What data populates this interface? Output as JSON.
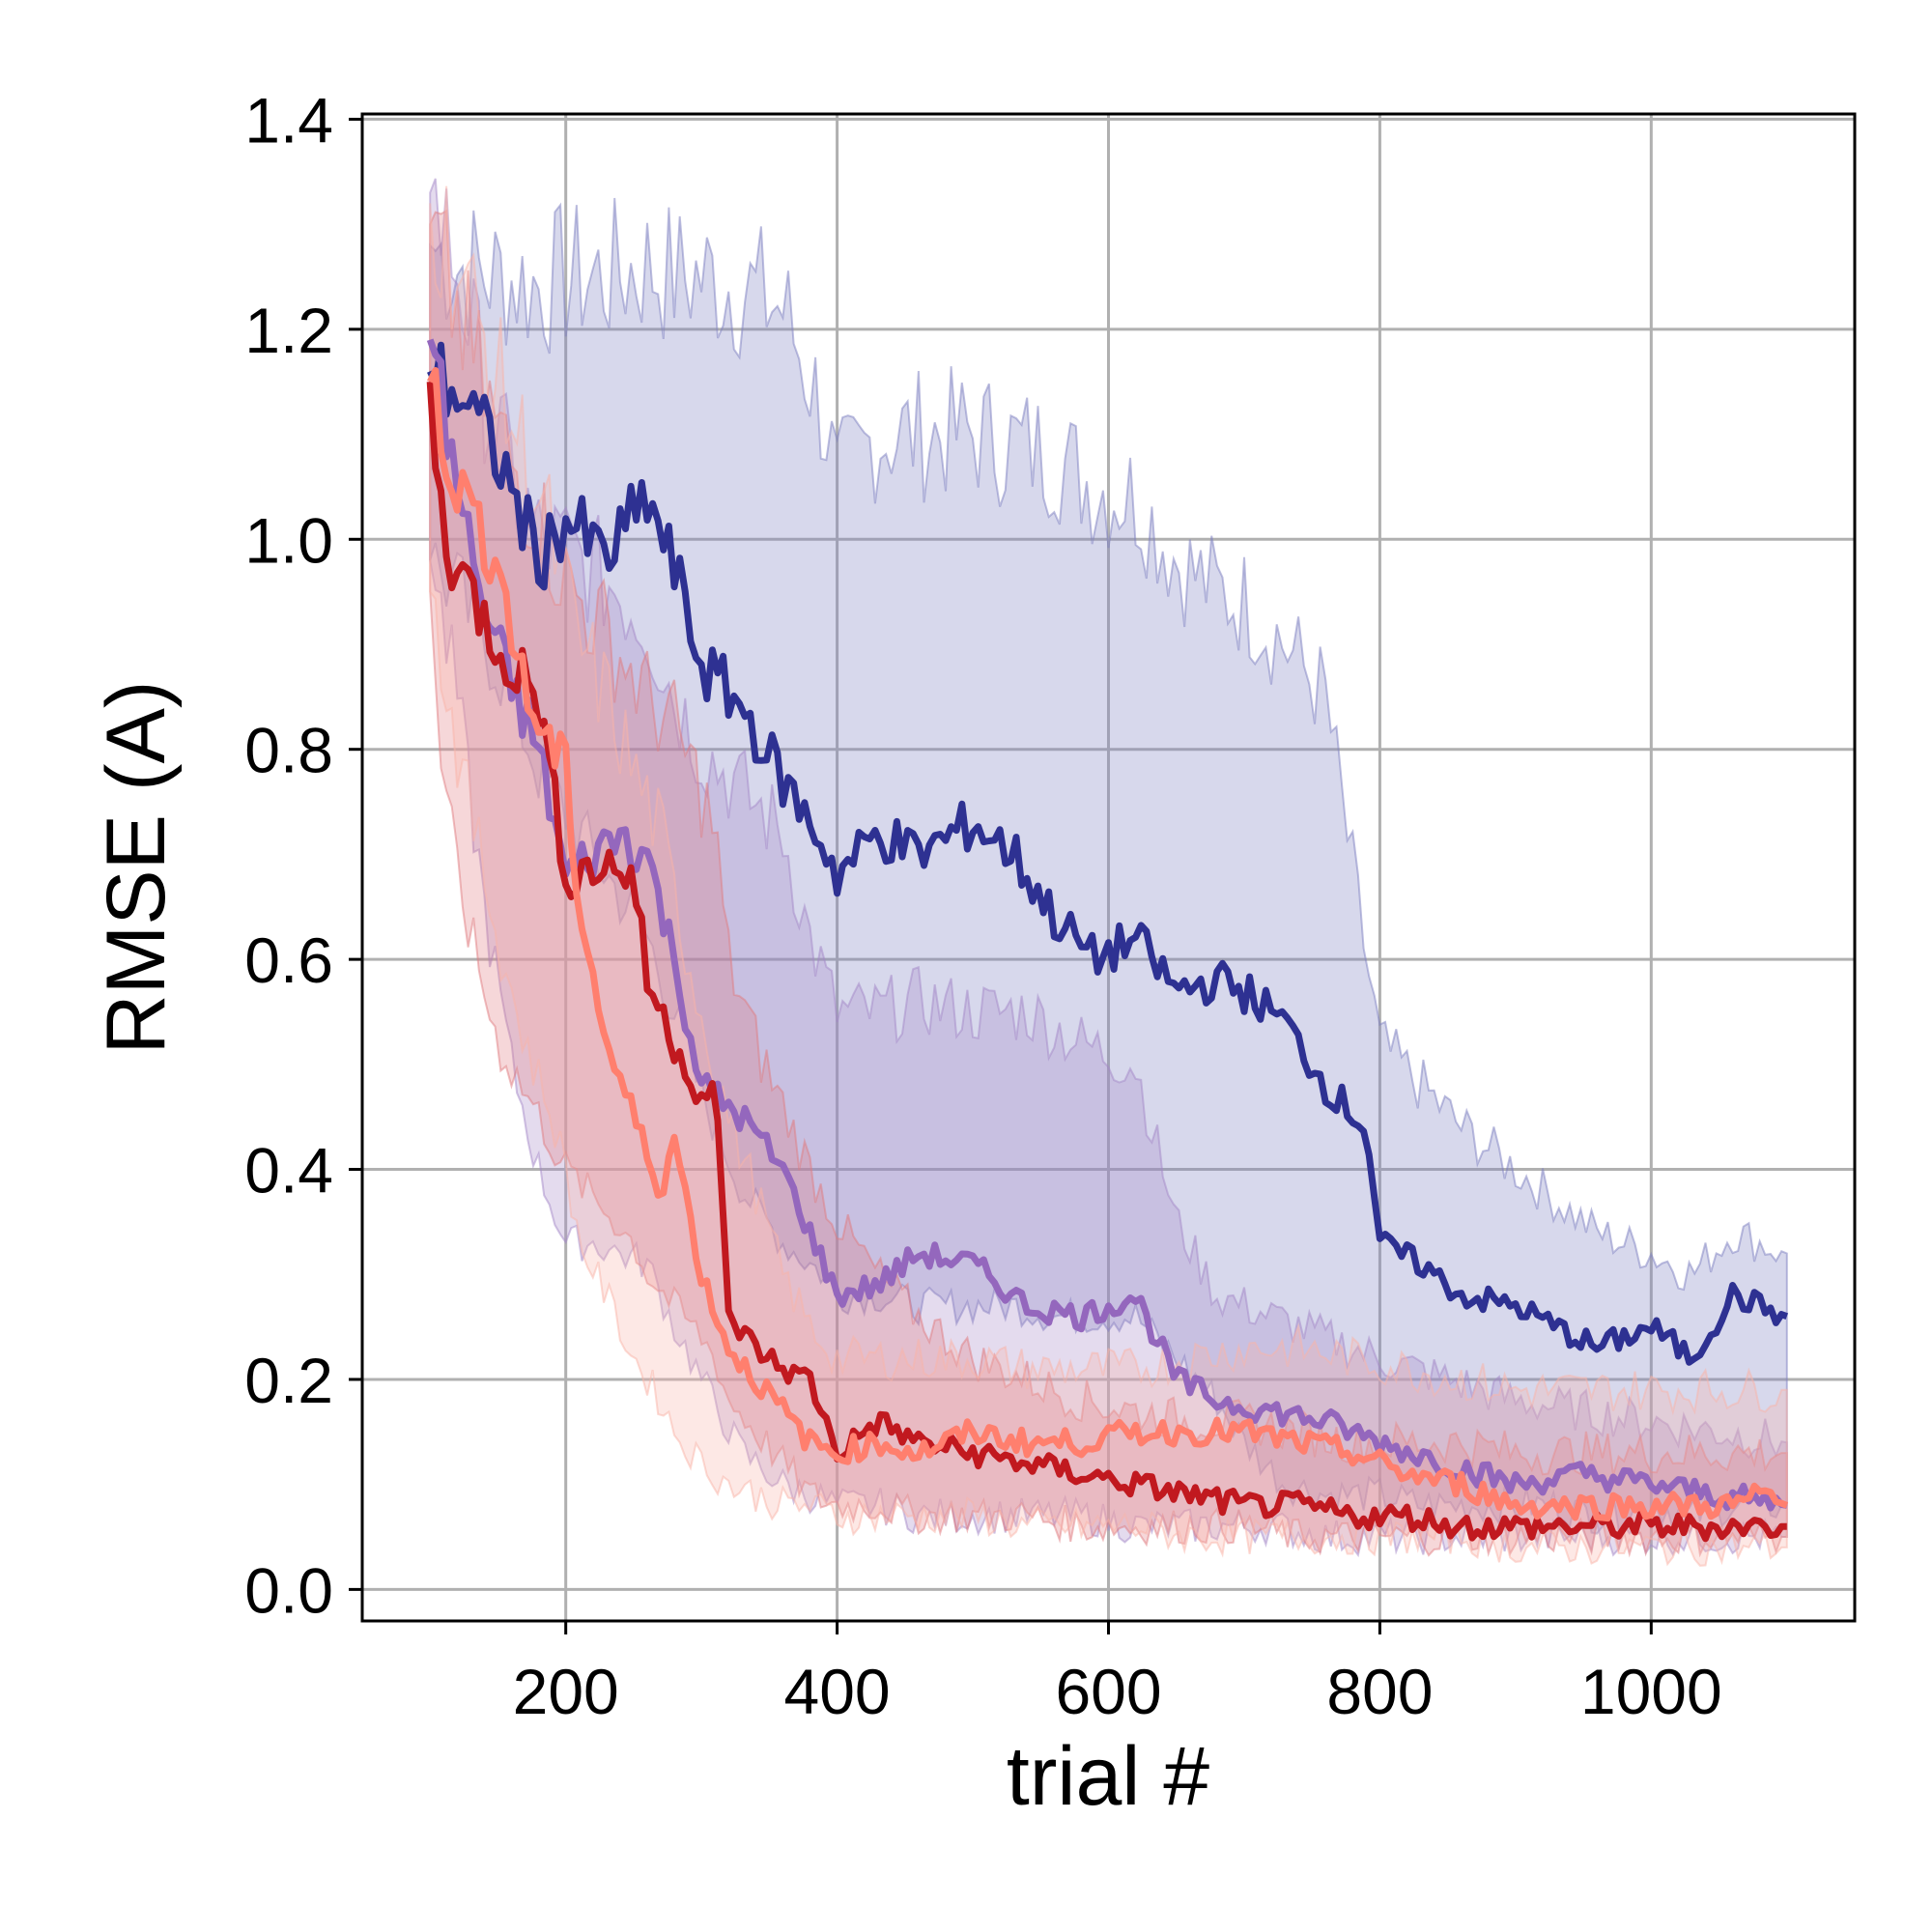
{
  "chart_data": {
    "type": "line",
    "title": "",
    "xlabel": "trial #",
    "ylabel": "RMSE (A)",
    "xlim": [
      50,
      1150
    ],
    "ylim": [
      -0.03,
      1.405
    ],
    "xticks": [
      200,
      400,
      600,
      800,
      1000
    ],
    "xtick_labels": [
      "200",
      "400",
      "600",
      "800",
      "1000"
    ],
    "yticks": [
      0.0,
      0.2,
      0.4,
      0.6,
      0.8,
      1.0,
      1.2,
      1.4
    ],
    "ytick_labels": [
      "0.0",
      "0.2",
      "0.4",
      "0.6",
      "0.8",
      "1.0",
      "1.2",
      "1.4"
    ],
    "grid": true,
    "legend": "none",
    "series": [
      {
        "color": "#2e3192",
        "band_color": "#7b7ec0",
        "x": [
          100,
          120,
          150,
          180,
          200,
          230,
          260,
          280,
          300,
          330,
          360,
          390,
          400,
          430,
          460,
          500,
          530,
          560,
          590,
          620,
          650,
          680,
          700,
          730,
          760,
          790,
          800,
          830,
          860,
          900,
          930,
          960,
          1000,
          1030,
          1060,
          1100
        ],
        "values": [
          1.16,
          1.14,
          1.08,
          0.98,
          1.02,
          0.98,
          1.04,
          0.97,
          0.88,
          0.84,
          0.77,
          0.71,
          0.68,
          0.72,
          0.7,
          0.73,
          0.7,
          0.64,
          0.6,
          0.62,
          0.57,
          0.58,
          0.57,
          0.54,
          0.48,
          0.44,
          0.33,
          0.31,
          0.28,
          0.27,
          0.25,
          0.23,
          0.25,
          0.22,
          0.28,
          0.26
        ],
        "lower": [
          0.98,
          0.95,
          0.88,
          0.78,
          0.74,
          0.68,
          0.62,
          0.55,
          0.47,
          0.38,
          0.33,
          0.3,
          0.28,
          0.28,
          0.27,
          0.27,
          0.27,
          0.26,
          0.26,
          0.26,
          0.22,
          0.18,
          0.14,
          0.1,
          0.09,
          0.09,
          0.09,
          0.08,
          0.08,
          0.08,
          0.08,
          0.07,
          0.08,
          0.07,
          0.08,
          0.08
        ],
        "upper": [
          1.28,
          1.26,
          1.25,
          1.24,
          1.25,
          1.25,
          1.26,
          1.25,
          1.25,
          1.24,
          1.22,
          1.12,
          1.05,
          1.1,
          1.1,
          1.1,
          1.09,
          1.08,
          1.05,
          1.04,
          0.98,
          0.95,
          0.94,
          0.9,
          0.85,
          0.6,
          0.52,
          0.48,
          0.44,
          0.4,
          0.37,
          0.34,
          0.32,
          0.3,
          0.34,
          0.32
        ]
      },
      {
        "color": "#9467bd",
        "band_color": "#a487c8",
        "x": [
          100,
          120,
          140,
          160,
          180,
          200,
          220,
          240,
          260,
          280,
          300,
          330,
          360,
          380,
          400,
          430,
          460,
          500,
          540,
          580,
          620,
          650,
          680,
          720,
          760,
          800,
          850,
          900,
          950,
          1000,
          1050,
          1100
        ],
        "values": [
          1.19,
          1.05,
          0.93,
          0.86,
          0.8,
          0.68,
          0.7,
          0.72,
          0.7,
          0.6,
          0.48,
          0.45,
          0.4,
          0.34,
          0.28,
          0.29,
          0.32,
          0.31,
          0.27,
          0.26,
          0.28,
          0.2,
          0.18,
          0.17,
          0.16,
          0.14,
          0.12,
          0.1,
          0.11,
          0.1,
          0.09,
          0.08
        ],
        "lower": [
          0.98,
          0.85,
          0.65,
          0.5,
          0.4,
          0.33,
          0.33,
          0.32,
          0.31,
          0.25,
          0.2,
          0.13,
          0.1,
          0.09,
          0.08,
          0.08,
          0.07,
          0.07,
          0.07,
          0.07,
          0.06,
          0.06,
          0.06,
          0.06,
          0.05,
          0.05,
          0.05,
          0.05,
          0.05,
          0.05,
          0.05,
          0.05
        ],
        "upper": [
          1.33,
          1.26,
          1.14,
          1.06,
          1.0,
          0.99,
          0.97,
          0.95,
          0.92,
          0.85,
          0.8,
          0.76,
          0.72,
          0.62,
          0.55,
          0.55,
          0.56,
          0.55,
          0.55,
          0.52,
          0.5,
          0.35,
          0.28,
          0.26,
          0.24,
          0.22,
          0.2,
          0.18,
          0.17,
          0.16,
          0.15,
          0.14
        ]
      },
      {
        "color": "#c1191f",
        "band_color": "#e07b80",
        "x": [
          100,
          110,
          130,
          150,
          180,
          200,
          230,
          250,
          260,
          280,
          300,
          310,
          320,
          340,
          360,
          380,
          400,
          430,
          460,
          500,
          540,
          580,
          620,
          660,
          700,
          740,
          780,
          820,
          860,
          900,
          940,
          980,
          1020,
          1060,
          1080,
          1100
        ],
        "values": [
          1.15,
          1.0,
          0.95,
          0.9,
          0.85,
          0.68,
          0.69,
          0.68,
          0.58,
          0.52,
          0.47,
          0.48,
          0.26,
          0.23,
          0.21,
          0.2,
          0.13,
          0.16,
          0.14,
          0.13,
          0.12,
          0.11,
          0.1,
          0.09,
          0.08,
          0.08,
          0.07,
          0.07,
          0.06,
          0.06,
          0.06,
          0.06,
          0.06,
          0.06,
          0.06,
          0.06
        ],
        "lower": [
          0.95,
          0.75,
          0.62,
          0.52,
          0.45,
          0.4,
          0.36,
          0.33,
          0.3,
          0.27,
          0.24,
          0.22,
          0.18,
          0.15,
          0.12,
          0.09,
          0.08,
          0.08,
          0.07,
          0.07,
          0.07,
          0.06,
          0.06,
          0.06,
          0.06,
          0.05,
          0.05,
          0.05,
          0.05,
          0.05,
          0.05,
          0.05,
          0.05,
          0.05,
          0.05,
          0.05
        ],
        "upper": [
          1.3,
          1.25,
          1.18,
          1.1,
          1.02,
          0.96,
          0.91,
          0.87,
          0.85,
          0.82,
          0.76,
          0.72,
          0.6,
          0.52,
          0.46,
          0.4,
          0.35,
          0.3,
          0.26,
          0.22,
          0.2,
          0.18,
          0.17,
          0.16,
          0.16,
          0.15,
          0.14,
          0.14,
          0.14,
          0.13,
          0.13,
          0.13,
          0.13,
          0.13,
          0.13,
          0.13
        ]
      },
      {
        "color": "#ff7f6e",
        "band_color": "#f9b3a8",
        "x": [
          100,
          120,
          150,
          170,
          190,
          200,
          210,
          230,
          250,
          270,
          280,
          300,
          320,
          340,
          360,
          380,
          400,
          430,
          460,
          500,
          540,
          580,
          620,
          660,
          700,
          740,
          780,
          820,
          860,
          900,
          940,
          980,
          1020,
          1060,
          1080,
          1100
        ],
        "values": [
          1.15,
          1.05,
          0.98,
          0.85,
          0.8,
          0.78,
          0.65,
          0.52,
          0.45,
          0.38,
          0.43,
          0.3,
          0.23,
          0.2,
          0.17,
          0.14,
          0.13,
          0.14,
          0.13,
          0.15,
          0.14,
          0.14,
          0.15,
          0.15,
          0.15,
          0.14,
          0.13,
          0.11,
          0.1,
          0.08,
          0.08,
          0.08,
          0.08,
          0.08,
          0.09,
          0.08
        ],
        "lower": [
          0.95,
          0.8,
          0.62,
          0.52,
          0.45,
          0.4,
          0.33,
          0.28,
          0.22,
          0.18,
          0.15,
          0.12,
          0.1,
          0.09,
          0.08,
          0.08,
          0.07,
          0.07,
          0.07,
          0.07,
          0.06,
          0.06,
          0.06,
          0.05,
          0.05,
          0.05,
          0.05,
          0.05,
          0.05,
          0.04,
          0.04,
          0.04,
          0.04,
          0.04,
          0.04,
          0.04
        ],
        "upper": [
          1.32,
          1.26,
          1.15,
          1.08,
          1.0,
          0.95,
          0.9,
          0.85,
          0.78,
          0.72,
          0.66,
          0.55,
          0.45,
          0.38,
          0.3,
          0.25,
          0.22,
          0.22,
          0.22,
          0.22,
          0.21,
          0.21,
          0.21,
          0.22,
          0.23,
          0.23,
          0.22,
          0.21,
          0.2,
          0.19,
          0.19,
          0.19,
          0.19,
          0.19,
          0.19,
          0.19
        ]
      }
    ]
  }
}
